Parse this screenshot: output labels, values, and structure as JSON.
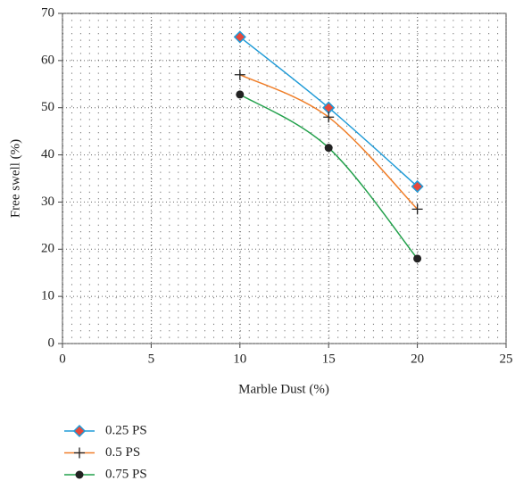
{
  "chart_data": {
    "type": "line",
    "x_label": "Marble Dust (%)",
    "y_label": "Free swell (%)",
    "x": [
      10,
      15,
      20
    ],
    "series": [
      {
        "name": "0.25 PS",
        "color": "#1f9bd7",
        "marker": "diamond",
        "marker_color": "#e8483a",
        "values": [
          65,
          50,
          33.3
        ]
      },
      {
        "name": "0.5 PS",
        "color": "#f07f2a",
        "marker": "plus",
        "marker_color": "#222222",
        "values": [
          57,
          48,
          28.5
        ]
      },
      {
        "name": "0.75 PS",
        "color": "#22a04b",
        "marker": "circle",
        "marker_color": "#222222",
        "values": [
          52.8,
          41.5,
          18
        ]
      }
    ],
    "xlim": [
      0,
      25
    ],
    "xticks": [
      0,
      5,
      10,
      15,
      20,
      25
    ],
    "ylim": [
      0,
      70
    ],
    "yticks": [
      0,
      10,
      20,
      30,
      40,
      50,
      60,
      70
    ],
    "grid": true,
    "legend": "bottom-left"
  }
}
